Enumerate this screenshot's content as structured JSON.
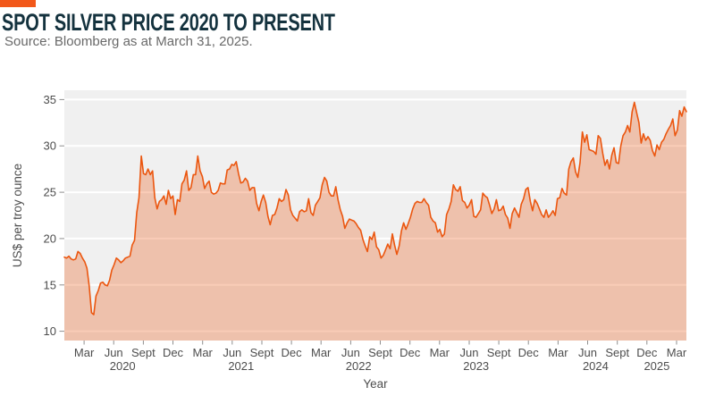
{
  "header": {
    "title": "SPOT SILVER PRICE 2020 TO PRESENT",
    "source": "Source: Bloomberg as at March 31, 2025."
  },
  "chart_data": {
    "type": "area",
    "title": "SPOT SILVER PRICE 2020 TO PRESENT",
    "xlabel": "Year",
    "ylabel": "US$ per troy ounce",
    "ylim": [
      9,
      36
    ],
    "yticks": [
      10,
      15,
      20,
      25,
      30,
      35
    ],
    "grid": "horizontal-major-white-on-gray",
    "legend": "none",
    "x_start": "2020-01",
    "x_end": "2025-03-31",
    "x_span_months": 63,
    "month_tick_labels": [
      "Mar",
      "Jun",
      "Sept",
      "Dec"
    ],
    "month_tick_first": 2,
    "month_tick_step": 3,
    "year_labels": [
      {
        "label": "2020",
        "month": 5.9
      },
      {
        "label": "2021",
        "month": 17.9
      },
      {
        "label": "2022",
        "month": 29.8
      },
      {
        "label": "2023",
        "month": 41.7
      },
      {
        "label": "2024",
        "month": 53.8
      },
      {
        "label": "2025",
        "month": 60.0
      }
    ],
    "series": [
      {
        "name": "Spot silver price",
        "unit": "US$ per troy ounce",
        "interval": "weekly",
        "values": [
          18.0,
          17.9,
          18.1,
          17.8,
          17.7,
          17.8,
          18.6,
          18.4,
          17.9,
          17.5,
          16.8,
          14.9,
          12.0,
          11.8,
          13.8,
          14.4,
          15.2,
          15.3,
          15.0,
          14.9,
          15.5,
          16.6,
          17.2,
          17.9,
          17.7,
          17.4,
          17.6,
          17.9,
          18.0,
          18.1,
          19.3,
          19.8,
          22.8,
          24.4,
          28.9,
          27.0,
          26.9,
          27.5,
          26.9,
          27.3,
          24.4,
          23.2,
          24.0,
          24.2,
          24.6,
          23.7,
          25.2,
          24.3,
          24.6,
          22.6,
          24.2,
          24.0,
          25.9,
          26.3,
          27.3,
          25.2,
          25.5,
          26.9,
          26.9,
          28.9,
          27.3,
          26.7,
          25.4,
          25.9,
          26.2,
          25.0,
          24.8,
          24.9,
          25.2,
          26.0,
          25.9,
          25.9,
          27.4,
          27.5,
          28.0,
          27.9,
          28.3,
          27.0,
          26.0,
          26.1,
          26.5,
          26.2,
          25.2,
          25.5,
          25.5,
          23.8,
          23.0,
          24.0,
          24.7,
          23.9,
          22.4,
          21.5,
          22.5,
          22.6,
          23.3,
          24.3,
          24.0,
          24.2,
          25.3,
          24.7,
          23.1,
          22.5,
          22.2,
          21.9,
          22.9,
          23.1,
          22.9,
          23.0,
          24.3,
          22.8,
          22.5,
          23.6,
          24.0,
          24.4,
          25.8,
          26.6,
          26.2,
          25.0,
          24.6,
          24.6,
          25.6,
          24.2,
          23.1,
          22.4,
          21.1,
          21.7,
          22.1,
          22.0,
          21.9,
          21.6,
          21.2,
          20.9,
          19.9,
          19.2,
          18.6,
          20.2,
          19.9,
          20.7,
          19.1,
          18.8,
          17.9,
          18.2,
          18.8,
          19.4,
          18.9,
          20.5,
          19.3,
          18.3,
          19.2,
          20.8,
          21.7,
          21.0,
          21.6,
          22.3,
          23.2,
          23.8,
          24.0,
          23.9,
          23.9,
          24.3,
          23.9,
          23.6,
          22.3,
          21.9,
          21.7,
          20.7,
          21.0,
          20.2,
          20.5,
          22.6,
          23.2,
          24.0,
          25.8,
          25.3,
          25.1,
          25.6,
          24.1,
          23.9,
          23.3,
          23.6,
          24.2,
          22.4,
          22.3,
          22.7,
          23.1,
          24.9,
          24.6,
          24.4,
          23.6,
          22.7,
          23.2,
          24.2,
          23.0,
          23.1,
          23.5,
          22.6,
          22.2,
          21.1,
          22.7,
          23.3,
          22.8,
          22.3,
          23.7,
          24.3,
          25.3,
          25.5,
          24.0,
          23.0,
          24.2,
          23.8,
          23.2,
          22.6,
          22.3,
          23.1,
          22.3,
          22.6,
          23.0,
          22.5,
          24.3,
          24.4,
          25.4,
          24.9,
          24.7,
          27.5,
          28.3,
          28.7,
          27.2,
          26.6,
          28.2,
          31.5,
          30.4,
          31.2,
          29.6,
          29.5,
          29.4,
          29.1,
          31.1,
          30.8,
          29.2,
          27.9,
          28.5,
          27.5,
          29.0,
          29.8,
          28.2,
          28.1,
          30.0,
          31.1,
          31.5,
          32.2,
          31.5,
          33.7,
          34.7,
          33.6,
          32.5,
          30.3,
          31.3,
          30.6,
          31.0,
          30.6,
          29.5,
          28.9,
          30.1,
          29.6,
          30.4,
          30.7,
          31.3,
          31.8,
          32.2,
          32.9,
          31.1,
          31.7,
          33.8,
          33.2,
          34.2,
          33.7
        ]
      }
    ],
    "colors": {
      "line": "#EB560F",
      "area_fill": "rgba(235,86,15,0.30)",
      "panel_bg": "#F0F0F0",
      "gridline": "#FFFFFF",
      "axis_text": "#4D4D4D",
      "tick_mark": "#8F8F8F",
      "accent_bar": "#F2581A",
      "title_text": "#14323E",
      "source_text": "#696969"
    }
  }
}
